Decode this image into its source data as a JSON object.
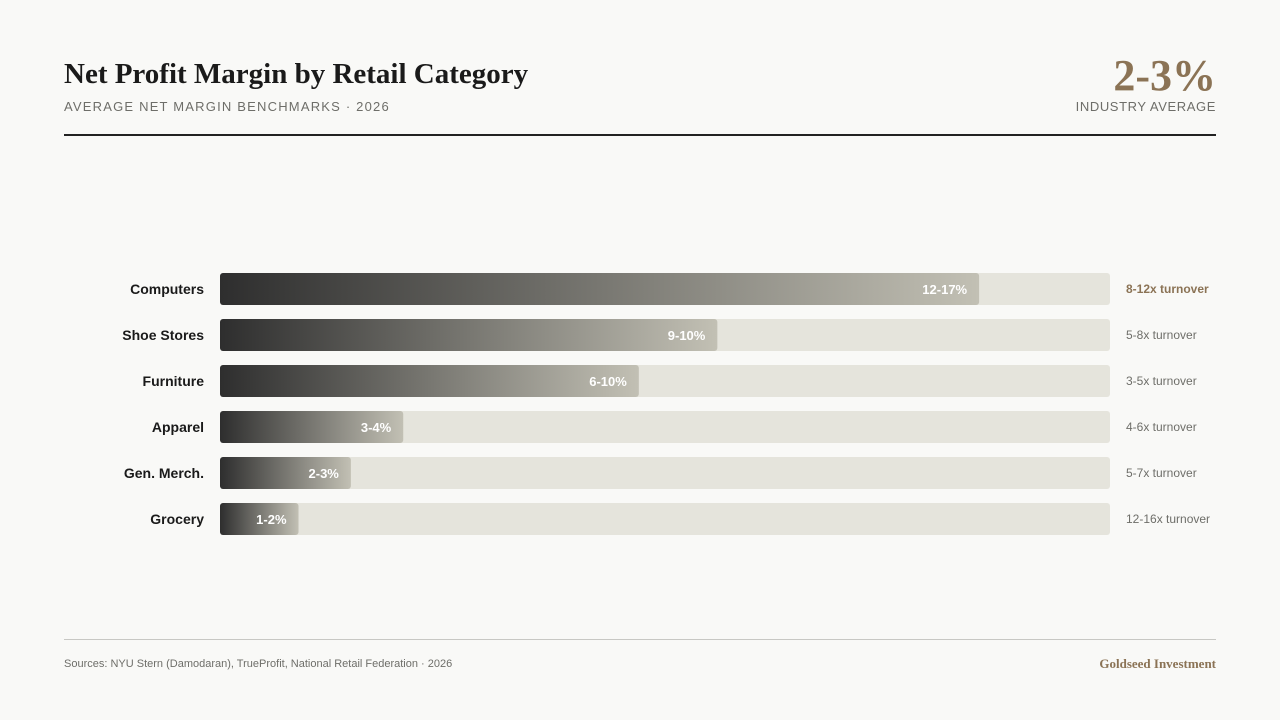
{
  "header": {
    "title": "Net Profit Margin by Retail Category",
    "subtitle": "AVERAGE NET MARGIN BENCHMARKS · 2026",
    "headline_value": "2-3%",
    "headline_label": "INDUSTRY AVERAGE"
  },
  "footer": {
    "sources": "Sources: NYU Stern (Damodaran), TrueProfit, National Retail Federation · 2026",
    "brand": "Goldseed Investment"
  },
  "colors": {
    "accent": "#8b7355",
    "bar_start": "#2e2e2e",
    "bar_end": "#c2c0b4",
    "track": "#e5e4dc",
    "text_dark": "#1a1a1a",
    "text_muted": "#6e6e69"
  },
  "chart_data": {
    "type": "bar",
    "orientation": "horizontal",
    "title": "Net Profit Margin by Retail Category",
    "categories": [
      "Computers",
      "Shoe Stores",
      "Furniture",
      "Apparel",
      "Gen. Merch.",
      "Grocery"
    ],
    "values": [
      14.5,
      9.5,
      8,
      3.5,
      2.5,
      1.5
    ],
    "value_labels": [
      "12-17%",
      "9-10%",
      "6-10%",
      "3-4%",
      "2-3%",
      "1-2%"
    ],
    "annotations": [
      "8-12x turnover",
      "5-8x turnover",
      "3-5x turnover",
      "4-6x turnover",
      "5-7x turnover",
      "12-16x turnover"
    ],
    "highlight_index": 0,
    "xlim": [
      0,
      17
    ],
    "grid": false,
    "legend": "none"
  }
}
